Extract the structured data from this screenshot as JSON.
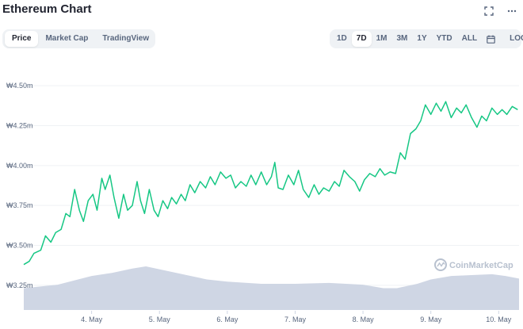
{
  "header": {
    "title": "Ethereum Chart",
    "left_tabs": [
      {
        "label": "Price",
        "active": true
      },
      {
        "label": "Market Cap",
        "active": false
      },
      {
        "label": "TradingView",
        "active": false
      }
    ],
    "range_tabs": [
      {
        "label": "1D",
        "active": false
      },
      {
        "label": "7D",
        "active": true
      },
      {
        "label": "1M",
        "active": false
      },
      {
        "label": "3M",
        "active": false
      },
      {
        "label": "1Y",
        "active": false
      },
      {
        "label": "YTD",
        "active": false
      },
      {
        "label": "ALL",
        "active": false
      }
    ],
    "log_label": "LOG",
    "icons": [
      "fullscreen-icon",
      "more-icon",
      "calendar-icon"
    ]
  },
  "watermark": "CoinMarketCap",
  "colors": {
    "line": "#16c784",
    "volume": "#cfd6e4",
    "grid": "#eff2f5",
    "text": "#58667e"
  },
  "chart_data": {
    "type": "line",
    "title": "",
    "ylim": [
      3.2,
      4.55
    ],
    "y_ticks": [
      {
        "value": 4.5,
        "label": "₩4.50m"
      },
      {
        "value": 4.25,
        "label": "₩4.25m"
      },
      {
        "value": 4.0,
        "label": "₩4.00m"
      },
      {
        "value": 3.75,
        "label": "₩3.75m"
      },
      {
        "value": 3.5,
        "label": "₩3.50m"
      },
      {
        "value": 3.25,
        "label": "₩3.25m"
      }
    ],
    "x_ticks": [
      "4. May",
      "5. May",
      "6. May",
      "7. May",
      "8. May",
      "9. May",
      "10. May"
    ],
    "x_range_days": [
      3.0,
      10.3
    ],
    "series": [
      {
        "x": [
          3.0,
          3.08,
          3.15,
          3.25,
          3.32,
          3.4,
          3.47,
          3.55,
          3.62,
          3.68,
          3.75,
          3.82,
          3.88,
          3.95,
          4.02,
          4.08,
          4.15,
          4.2,
          4.27,
          4.33,
          4.4,
          4.47,
          4.53,
          4.6,
          4.67,
          4.72,
          4.78,
          4.85,
          4.92,
          4.98,
          5.05,
          5.12,
          5.18,
          5.25,
          5.32,
          5.38,
          5.45,
          5.52,
          5.6,
          5.68,
          5.75,
          5.82,
          5.9,
          5.98,
          6.05,
          6.12,
          6.2,
          6.28,
          6.35,
          6.42,
          6.5,
          6.58,
          6.65,
          6.7,
          6.75,
          6.82,
          6.9,
          6.98,
          7.05,
          7.12,
          7.2,
          7.28,
          7.35,
          7.42,
          7.5,
          7.58,
          7.65,
          7.72,
          7.8,
          7.88,
          7.95,
          8.02,
          8.1,
          8.18,
          8.25,
          8.32,
          8.4,
          8.48,
          8.55,
          8.62,
          8.7,
          8.78,
          8.85,
          8.92,
          9.0,
          9.08,
          9.15,
          9.22,
          9.3,
          9.38,
          9.45,
          9.52,
          9.6,
          9.68,
          9.75,
          9.82,
          9.9,
          9.98,
          10.05,
          10.12,
          10.2,
          10.28
        ],
        "values": [
          3.38,
          3.4,
          3.45,
          3.47,
          3.56,
          3.52,
          3.58,
          3.6,
          3.7,
          3.68,
          3.85,
          3.72,
          3.65,
          3.78,
          3.82,
          3.72,
          3.92,
          3.85,
          3.94,
          3.8,
          3.67,
          3.82,
          3.72,
          3.75,
          3.9,
          3.78,
          3.7,
          3.85,
          3.72,
          3.68,
          3.78,
          3.73,
          3.8,
          3.76,
          3.82,
          3.78,
          3.88,
          3.83,
          3.9,
          3.86,
          3.93,
          3.88,
          3.96,
          3.92,
          3.94,
          3.86,
          3.9,
          3.87,
          3.94,
          3.88,
          3.96,
          3.88,
          3.93,
          4.02,
          3.86,
          3.85,
          3.94,
          3.88,
          3.97,
          3.85,
          3.8,
          3.88,
          3.82,
          3.86,
          3.84,
          3.9,
          3.87,
          3.97,
          3.93,
          3.9,
          3.84,
          3.91,
          3.95,
          3.93,
          3.98,
          3.94,
          3.96,
          3.95,
          4.08,
          4.04,
          4.2,
          4.23,
          4.28,
          4.38,
          4.32,
          4.39,
          4.34,
          4.4,
          4.3,
          4.36,
          4.33,
          4.38,
          4.3,
          4.24,
          4.31,
          4.28,
          4.36,
          4.32,
          4.35,
          4.32,
          4.37,
          4.35
        ]
      }
    ],
    "volume": {
      "x": [
        3.0,
        3.5,
        4.0,
        4.3,
        4.6,
        4.8,
        5.1,
        5.4,
        5.7,
        6.0,
        6.5,
        7.0,
        7.5,
        8.0,
        8.3,
        8.5,
        8.8,
        9.0,
        9.3,
        9.6,
        9.9,
        10.1,
        10.3
      ],
      "values": [
        0.5,
        0.58,
        0.78,
        0.85,
        0.95,
        1.0,
        0.9,
        0.8,
        0.7,
        0.65,
        0.6,
        0.6,
        0.62,
        0.58,
        0.5,
        0.5,
        0.6,
        0.7,
        0.78,
        0.8,
        0.82,
        0.78,
        0.72
      ]
    }
  }
}
